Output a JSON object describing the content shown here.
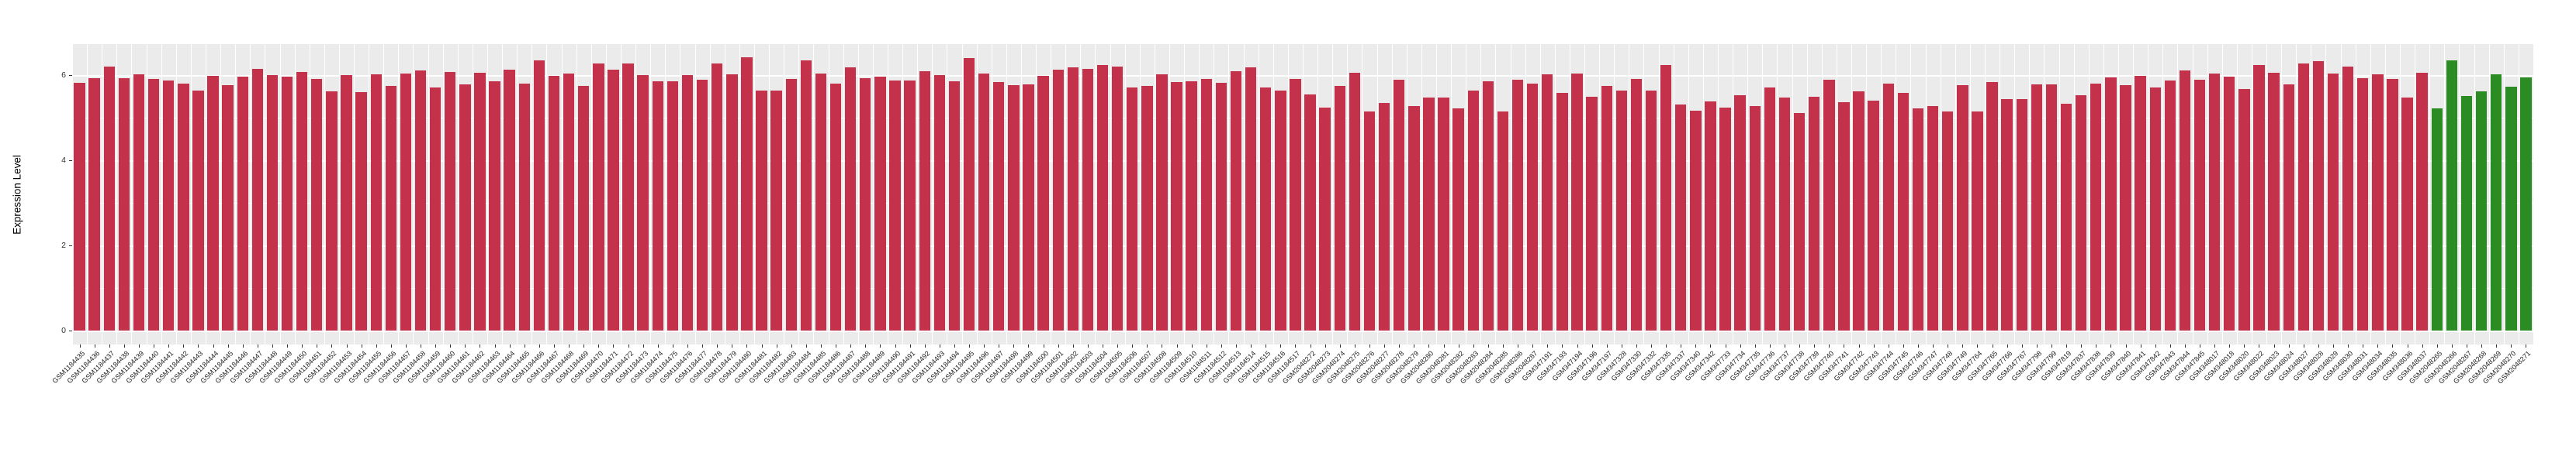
{
  "chart_data": {
    "type": "bar",
    "title": "",
    "xlabel": "",
    "ylabel": "Expression Level",
    "yticks": [
      0,
      2,
      4,
      6
    ],
    "ytick_labels": [
      "0",
      "2",
      "4",
      "6"
    ],
    "ylim": [
      -0.32,
      6.72
    ],
    "grid": true,
    "legend_position": "none",
    "panel_bg": "#EBEBEB",
    "gridline_color": "#ffffff",
    "bar_colors": {
      "default": "#C3314B",
      "highlight": "#2A8C23"
    },
    "highlight_start_index": 159,
    "categories": [
      "GSM1184435",
      "GSM1184436",
      "GSM1184437",
      "GSM1184438",
      "GSM1184439",
      "GSM1184440",
      "GSM1184441",
      "GSM1184442",
      "GSM1184443",
      "GSM1184444",
      "GSM1184445",
      "GSM1184446",
      "GSM1184447",
      "GSM1184448",
      "GSM1184449",
      "GSM1184450",
      "GSM1184451",
      "GSM1184452",
      "GSM1184453",
      "GSM1184454",
      "GSM1184455",
      "GSM1184456",
      "GSM1184457",
      "GSM1184458",
      "GSM1184459",
      "GSM1184460",
      "GSM1184461",
      "GSM1184462",
      "GSM1184463",
      "GSM1184464",
      "GSM1184465",
      "GSM1184466",
      "GSM1184467",
      "GSM1184468",
      "GSM1184469",
      "GSM1184470",
      "GSM1184471",
      "GSM1184472",
      "GSM1184473",
      "GSM1184474",
      "GSM1184475",
      "GSM1184476",
      "GSM1184477",
      "GSM1184478",
      "GSM1184479",
      "GSM1184480",
      "GSM1184481",
      "GSM1184482",
      "GSM1184483",
      "GSM1184484",
      "GSM1184485",
      "GSM1184486",
      "GSM1184487",
      "GSM1184488",
      "GSM1184489",
      "GSM1184490",
      "GSM1184491",
      "GSM1184492",
      "GSM1184493",
      "GSM1184494",
      "GSM1184495",
      "GSM1184496",
      "GSM1184497",
      "GSM1184498",
      "GSM1184499",
      "GSM1184500",
      "GSM1184501",
      "GSM1184502",
      "GSM1184503",
      "GSM1184504",
      "GSM1184505",
      "GSM1184506",
      "GSM1184507",
      "GSM1184508",
      "GSM1184509",
      "GSM1184510",
      "GSM1184511",
      "GSM1184512",
      "GSM1184513",
      "GSM1184514",
      "GSM1184515",
      "GSM1184516",
      "GSM1184517",
      "GSM2048272",
      "GSM2048273",
      "GSM2048274",
      "GSM2048275",
      "GSM2048276",
      "GSM2048277",
      "GSM2048278",
      "GSM2048279",
      "GSM2048280",
      "GSM2048281",
      "GSM2048282",
      "GSM2048283",
      "GSM2048284",
      "GSM2048285",
      "GSM2048286",
      "GSM2048287",
      "GSM347191",
      "GSM347193",
      "GSM347194",
      "GSM347196",
      "GSM347197",
      "GSM347328",
      "GSM347330",
      "GSM347332",
      "GSM347335",
      "GSM347337",
      "GSM347340",
      "GSM347342",
      "GSM347733",
      "GSM347734",
      "GSM347735",
      "GSM347736",
      "GSM347737",
      "GSM347738",
      "GSM347739",
      "GSM347740",
      "GSM347741",
      "GSM347742",
      "GSM347743",
      "GSM347744",
      "GSM347745",
      "GSM347746",
      "GSM347747",
      "GSM347748",
      "GSM347749",
      "GSM347764",
      "GSM347765",
      "GSM347766",
      "GSM347767",
      "GSM347798",
      "GSM347799",
      "GSM347819",
      "GSM347837",
      "GSM347838",
      "GSM347839",
      "GSM347840",
      "GSM347841",
      "GSM347842",
      "GSM347843",
      "GSM347844",
      "GSM347845",
      "GSM348017",
      "GSM348018",
      "GSM348020",
      "GSM348022",
      "GSM348023",
      "GSM348024",
      "GSM348027",
      "GSM348028",
      "GSM348029",
      "GSM348030",
      "GSM348031",
      "GSM348034",
      "GSM348035",
      "GSM348036",
      "GSM348037",
      "GSM2048265",
      "GSM2048266",
      "GSM2048267",
      "GSM2048268",
      "GSM2048269",
      "GSM2048270",
      "GSM2048271"
    ],
    "values": [
      5.82,
      5.94,
      6.21,
      5.94,
      6.02,
      5.91,
      5.88,
      5.81,
      5.65,
      5.99,
      5.77,
      5.97,
      6.15,
      6.01,
      5.97,
      6.07,
      5.91,
      5.63,
      6.01,
      5.61,
      6.03,
      5.75,
      6.04,
      6.11,
      5.71,
      6.07,
      5.78,
      6.06,
      5.86,
      6.13,
      5.8,
      6.35,
      5.98,
      6.04,
      5.75,
      6.27,
      6.13,
      6.27,
      6.01,
      5.86,
      5.86,
      6.0,
      5.9,
      6.27,
      6.02,
      6.42,
      5.65,
      5.64,
      5.91,
      6.36,
      6.05,
      5.8,
      6.19,
      5.93,
      5.97,
      5.87,
      5.88,
      6.09,
      6.01,
      5.86,
      6.41,
      6.04,
      5.84,
      5.77,
      5.79,
      5.98,
      6.14,
      6.19,
      6.16,
      6.24,
      6.2,
      5.71,
      5.76,
      6.02,
      5.85,
      5.86,
      5.92,
      5.82,
      6.09,
      6.19,
      5.71,
      5.64,
      5.92,
      5.55,
      5.24,
      5.75,
      6.06,
      5.15,
      5.36,
      5.9,
      5.27,
      5.48,
      5.48,
      5.22,
      5.65,
      5.86,
      5.16,
      5.9,
      5.8,
      6.02,
      5.59,
      6.04,
      5.49,
      5.76,
      5.64,
      5.92,
      5.65,
      6.24,
      5.31,
      5.17,
      5.39,
      5.24,
      5.54,
      5.28,
      5.72,
      5.47,
      5.11,
      5.5,
      5.89,
      5.37,
      5.62,
      5.41,
      5.81,
      5.58,
      5.22,
      5.27,
      5.15,
      5.77,
      5.16,
      5.84,
      5.45,
      5.44,
      5.79,
      5.79,
      5.33,
      5.53,
      5.81,
      5.95,
      5.77,
      5.98,
      5.71,
      5.88,
      6.11,
      5.9,
      6.05,
      5.97,
      5.68,
      6.25,
      6.06,
      5.78,
      6.28,
      6.33,
      6.04,
      6.21,
      5.94,
      6.02,
      5.91,
      5.48,
      6.06,
      5.22,
      6.36,
      5.51,
      5.62,
      6.03,
      5.73,
      5.95
    ]
  }
}
